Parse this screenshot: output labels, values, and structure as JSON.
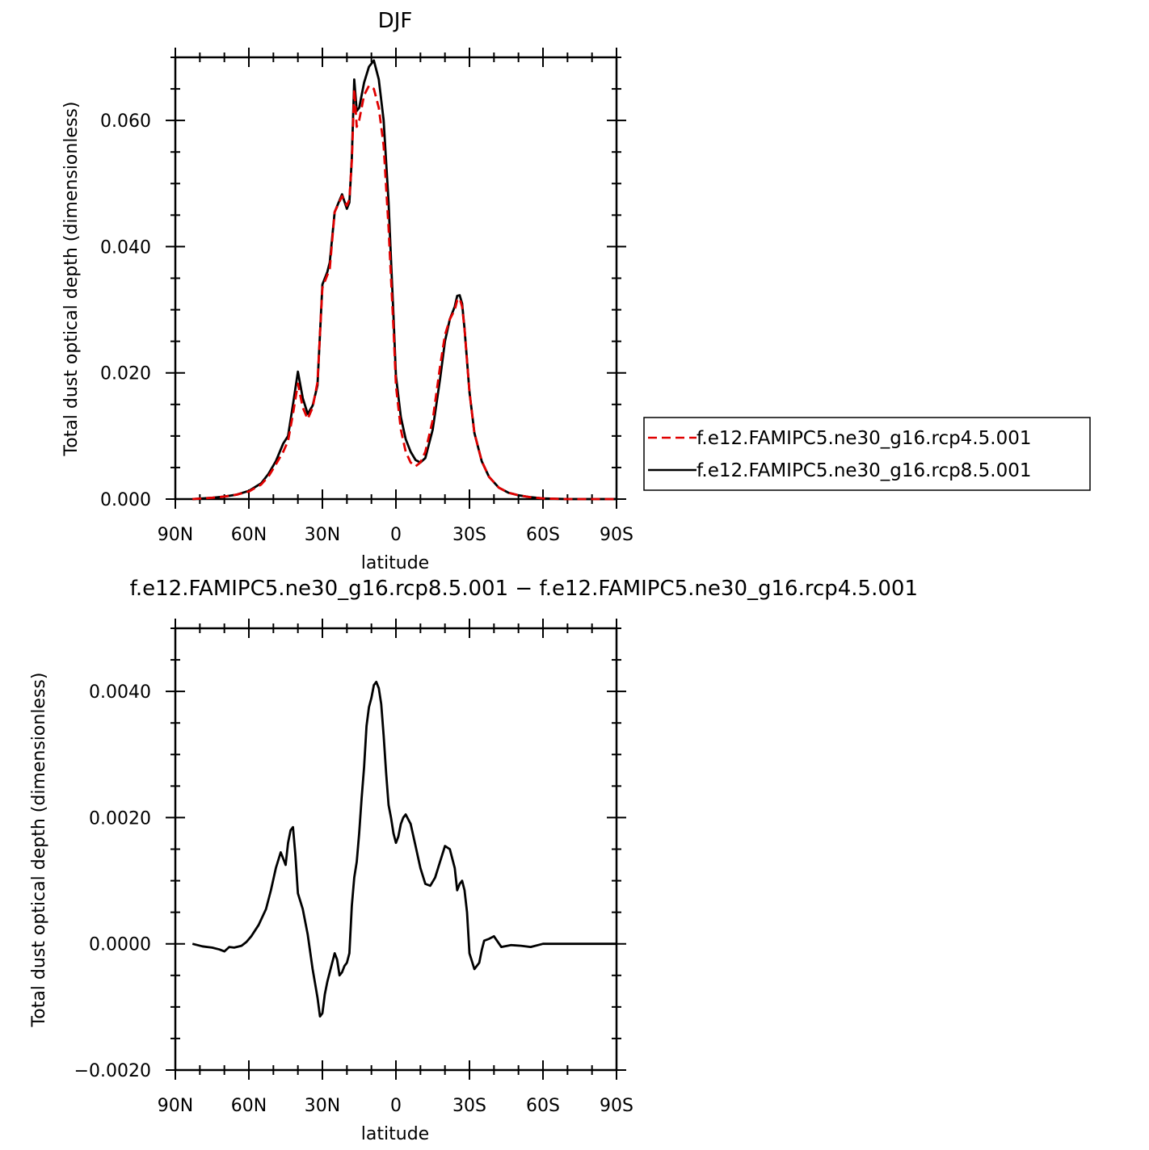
{
  "chart_data": [
    {
      "type": "line",
      "title": "DJF",
      "xlabel": "latitude",
      "ylabel": "Total dust optical depth (dimensionless)",
      "xlim": [
        90,
        -90
      ],
      "ylim": [
        0,
        0.07
      ],
      "x_ticks": [
        90,
        60,
        30,
        0,
        -30,
        -60,
        -90
      ],
      "x_tick_labels": [
        "90N",
        "60N",
        "30N",
        "0",
        "30S",
        "60S",
        "90S"
      ],
      "y_ticks": [
        0,
        0.02,
        0.04,
        0.06
      ],
      "y_tick_labels": [
        "0.000",
        "0.020",
        "0.040",
        "0.060"
      ],
      "legend_position": "right",
      "series": [
        {
          "name": "f.e12.FAMIPC5.ne30_g16.rcp4.5.001",
          "color": "#e00000",
          "dash": "dashed",
          "x": [
            83,
            75,
            70,
            65,
            60,
            55,
            52,
            49,
            46,
            44,
            42,
            40,
            38,
            36,
            34,
            32,
            30,
            28,
            27,
            25,
            22,
            20,
            19,
            18,
            17,
            16,
            15,
            13,
            11,
            9,
            7,
            5,
            3,
            2,
            1,
            0,
            -2,
            -4,
            -6,
            -8,
            -10,
            -12,
            -15,
            -18,
            -20,
            -22,
            -24,
            -25,
            -26,
            -27,
            -28,
            -30,
            -32,
            -35,
            -38,
            -42,
            -46,
            -50,
            -55,
            -60,
            -70,
            -80,
            -90
          ],
          "y": [
            0.0,
            0.0002,
            0.0004,
            0.0007,
            0.0012,
            0.0023,
            0.0036,
            0.0055,
            0.0075,
            0.0092,
            0.0135,
            0.0183,
            0.0145,
            0.0127,
            0.0145,
            0.0185,
            0.0335,
            0.0355,
            0.0365,
            0.0455,
            0.048,
            0.0465,
            0.0475,
            0.0535,
            0.065,
            0.059,
            0.06,
            0.064,
            0.0655,
            0.065,
            0.062,
            0.056,
            0.043,
            0.035,
            0.027,
            0.018,
            0.011,
            0.0075,
            0.0058,
            0.0052,
            0.0058,
            0.0075,
            0.0125,
            0.021,
            0.026,
            0.0285,
            0.03,
            0.0315,
            0.0318,
            0.0305,
            0.027,
            0.017,
            0.0105,
            0.006,
            0.0035,
            0.0018,
            0.001,
            0.0006,
            0.0003,
            0.0001,
            0.0,
            0.0,
            0.0
          ]
        },
        {
          "name": "f.e12.FAMIPC5.ne30_g16.rcp8.5.001",
          "color": "#000000",
          "dash": "solid",
          "x": [
            83,
            75,
            70,
            65,
            60,
            55,
            52,
            49,
            46,
            44,
            42,
            40,
            38,
            36,
            34,
            32,
            30,
            28,
            27,
            25,
            22,
            20,
            19,
            18,
            17,
            16,
            15,
            13,
            11,
            9,
            7,
            5,
            3,
            2,
            1,
            0,
            -2,
            -4,
            -6,
            -8,
            -10,
            -12,
            -15,
            -18,
            -20,
            -22,
            -24,
            -25,
            -26,
            -27,
            -28,
            -30,
            -32,
            -35,
            -38,
            -42,
            -46,
            -50,
            -55,
            -60,
            -70,
            -80,
            -90
          ],
          "y": [
            0.0,
            0.0002,
            0.0004,
            0.0007,
            0.0013,
            0.0025,
            0.004,
            0.006,
            0.0088,
            0.01,
            0.015,
            0.0202,
            0.016,
            0.0135,
            0.0148,
            0.018,
            0.034,
            0.036,
            0.0375,
            0.0455,
            0.0483,
            0.046,
            0.047,
            0.054,
            0.0665,
            0.0615,
            0.062,
            0.066,
            0.0685,
            0.0695,
            0.0665,
            0.06,
            0.047,
            0.038,
            0.029,
            0.0195,
            0.013,
            0.0095,
            0.0075,
            0.0062,
            0.0058,
            0.0065,
            0.011,
            0.019,
            0.025,
            0.0285,
            0.0305,
            0.0322,
            0.0323,
            0.031,
            0.027,
            0.017,
            0.0105,
            0.006,
            0.0035,
            0.0018,
            0.001,
            0.0006,
            0.0003,
            0.0001,
            0.0,
            0.0,
            0.0
          ]
        }
      ]
    },
    {
      "type": "line",
      "title": "f.e12.FAMIPC5.ne30_g16.rcp8.5.001 − f.e12.FAMIPC5.ne30_g16.rcp4.5.001",
      "xlabel": "latitude",
      "ylabel": "Total dust optical depth (dimensionless)",
      "xlim": [
        90,
        -90
      ],
      "ylim": [
        -0.002,
        0.005
      ],
      "x_ticks": [
        90,
        60,
        30,
        0,
        -30,
        -60,
        -90
      ],
      "x_tick_labels": [
        "90N",
        "60N",
        "30N",
        "0",
        "30S",
        "60S",
        "90S"
      ],
      "y_ticks": [
        -0.002,
        0,
        0.002,
        0.004
      ],
      "y_tick_labels": [
        "−0.0020",
        "0.0000",
        "0.0020",
        "0.0040"
      ],
      "series": [
        {
          "name": "",
          "color": "#000000",
          "dash": "solid",
          "x": [
            83,
            79,
            75,
            72,
            70,
            68,
            66,
            63,
            61,
            59,
            56,
            53,
            51,
            49,
            47,
            46,
            45,
            44,
            43,
            42,
            41,
            40,
            38,
            36,
            34,
            32,
            31,
            30,
            29,
            28,
            27,
            26,
            25,
            24,
            23,
            22,
            21,
            20,
            19,
            18,
            17,
            16,
            15,
            14,
            13,
            12,
            11,
            10,
            9,
            8,
            7,
            6,
            5,
            4,
            3,
            2,
            1,
            0,
            -1,
            -2,
            -3,
            -4,
            -6,
            -8,
            -10,
            -12,
            -14,
            -16,
            -18,
            -20,
            -22,
            -24,
            -25,
            -26,
            -27,
            -28,
            -29,
            -30,
            -32,
            -34,
            -35,
            -36,
            -38,
            -40,
            -43,
            -47,
            -51,
            -55,
            -60,
            -70,
            -90
          ],
          "y": [
            0.0,
            -4e-05,
            -6e-05,
            -9e-05,
            -0.00012,
            -5e-05,
            -6e-05,
            -3e-05,
            3e-05,
            0.00012,
            0.0003,
            0.00055,
            0.00085,
            0.0012,
            0.00145,
            0.00135,
            0.00125,
            0.0016,
            0.0018,
            0.00185,
            0.0014,
            0.0008,
            0.00055,
            0.00015,
            -0.0004,
            -0.00085,
            -0.00115,
            -0.0011,
            -0.0008,
            -0.0006,
            -0.00045,
            -0.0003,
            -0.00015,
            -0.00025,
            -0.0005,
            -0.00045,
            -0.00035,
            -0.0003,
            -0.00015,
            0.0006,
            0.00105,
            0.0013,
            0.00175,
            0.0023,
            0.0028,
            0.00345,
            0.00375,
            0.0039,
            0.0041,
            0.00415,
            0.00405,
            0.0038,
            0.0033,
            0.0027,
            0.0022,
            0.002,
            0.00175,
            0.0016,
            0.0017,
            0.0019,
            0.002,
            0.00205,
            0.0019,
            0.00155,
            0.0012,
            0.00095,
            0.00092,
            0.00105,
            0.0013,
            0.00155,
            0.0015,
            0.0012,
            0.00085,
            0.00095,
            0.001,
            0.00085,
            0.0005,
            -0.00015,
            -0.0004,
            -0.0003,
            -0.0001,
            5e-05,
            8e-05,
            0.00012,
            -5e-05,
            -2e-05,
            -3e-05,
            -5e-05,
            0.0,
            0.0,
            0.0
          ]
        }
      ]
    }
  ]
}
